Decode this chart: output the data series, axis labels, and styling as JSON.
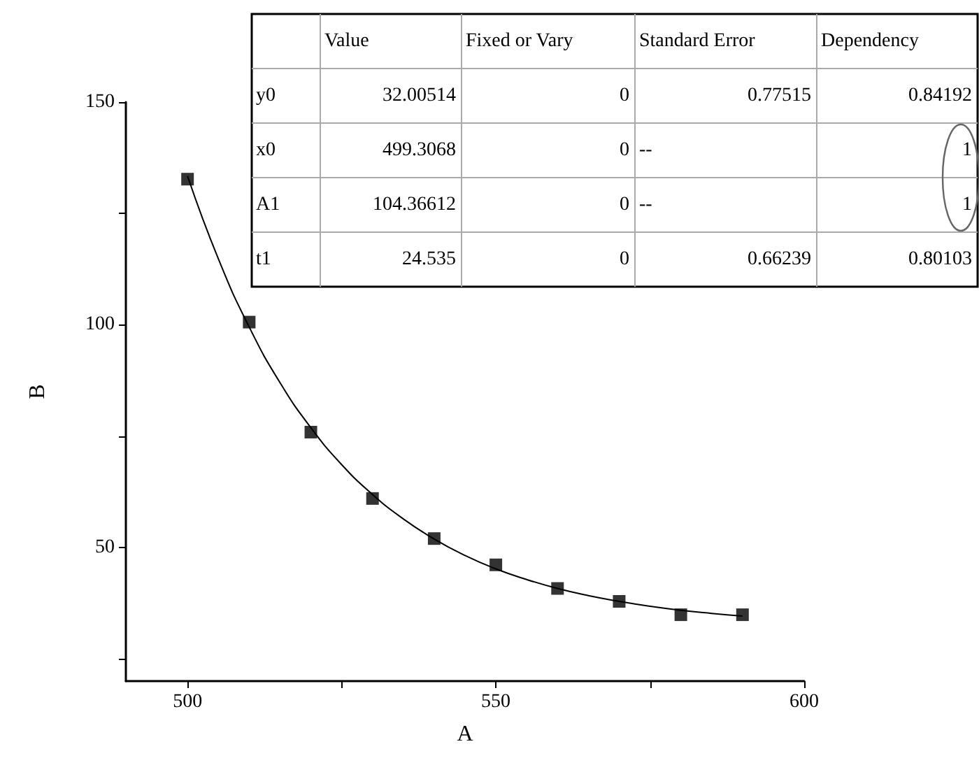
{
  "chart_data": {
    "type": "scatter",
    "xlabel": "A",
    "ylabel": "B",
    "xlim": [
      490,
      600
    ],
    "ylim": [
      20,
      150
    ],
    "xticks": [
      500,
      {
        "value": 525,
        "label": null
      },
      550,
      {
        "value": 575,
        "label": null
      },
      600
    ],
    "yticks": [
      {
        "value": 25,
        "label": null
      },
      50,
      {
        "value": 75,
        "label": null
      },
      100,
      {
        "value": 125,
        "label": null
      },
      150
    ],
    "grid": false,
    "series": [
      {
        "color": "#000000",
        "marker": "square",
        "x": [
          500,
          510,
          520,
          530,
          540,
          550,
          560,
          570,
          580,
          590
        ],
        "values": [
          132.7,
          100.6,
          75.9,
          61.0,
          52.0,
          46.1,
          40.8,
          37.9,
          34.9,
          34.9
        ]
      },
      {
        "type": "line",
        "color": "#000000",
        "marker": "none",
        "line_style": "solid",
        "x": [
          500,
          505,
          510,
          515,
          520,
          525,
          530,
          535,
          540,
          545,
          550,
          555,
          560,
          565,
          570,
          575,
          580,
          585,
          590
        ],
        "values": [
          133.4,
          114.8,
          99.5,
          87.0,
          76.9,
          68.6,
          61.9,
          56.4,
          51.9,
          48.2,
          45.2,
          42.8,
          40.8,
          39.2,
          37.9,
          36.8,
          35.9,
          35.2,
          34.6
        ]
      }
    ],
    "annotations": [
      "Value",
      "Fixed or Vary",
      "Standard Error",
      "Dependency",
      "y0",
      "32.00514",
      "0",
      "0.77515",
      "0.84192",
      "x0",
      "499.3068",
      "0",
      "--",
      "1",
      "A1",
      "104.36612",
      "0",
      "--",
      "1",
      "t1",
      "24.535",
      "0",
      "0.66239",
      "0.80103"
    ]
  }
}
